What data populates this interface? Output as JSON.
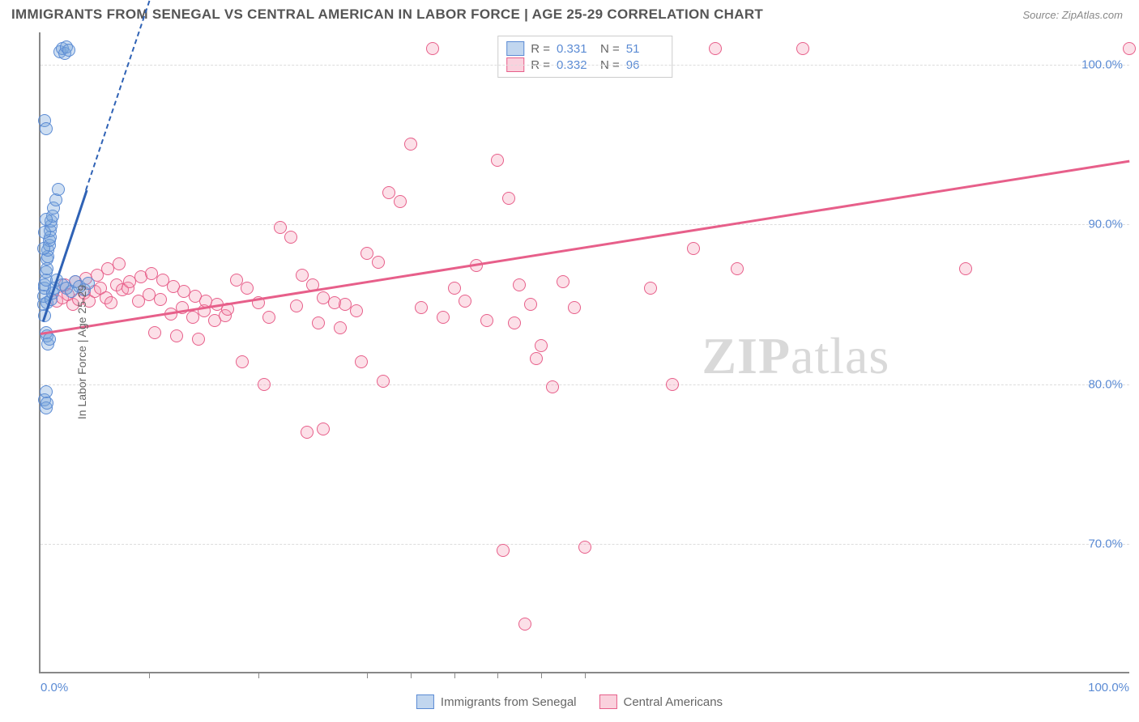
{
  "header": {
    "title": "IMMIGRANTS FROM SENEGAL VS CENTRAL AMERICAN IN LABOR FORCE | AGE 25-29 CORRELATION CHART",
    "source_prefix": "Source: ",
    "source_name": "ZipAtlas.com"
  },
  "chart": {
    "type": "scatter",
    "y_label": "In Labor Force | Age 25-29",
    "x_range": [
      0,
      100
    ],
    "y_range": [
      62,
      102
    ],
    "y_ticks": [
      70,
      80,
      90,
      100
    ],
    "y_tick_labels": [
      "70.0%",
      "80.0%",
      "90.0%",
      "100.0%"
    ],
    "x_major_ticks": [
      0,
      100
    ],
    "x_major_labels": [
      "0.0%",
      "100.0%"
    ],
    "x_minor_ticks": [
      10,
      20,
      30,
      34,
      38,
      42,
      46,
      50
    ],
    "background_color": "#ffffff",
    "grid_color": "#dddddd",
    "axis_color": "#888888",
    "marker_radius": 8,
    "marker_border_width": 1.5,
    "watermark": "ZIPatlas",
    "series": {
      "senegal": {
        "label": "Immigrants from Senegal",
        "fill": "rgba(118,164,219,0.35)",
        "stroke": "#5b8bd4",
        "swatch_fill": "rgba(118,164,219,0.45)",
        "swatch_stroke": "#5b8bd4",
        "r_label": "R  =",
        "r_value": "0.331",
        "n_label": "N  =",
        "n_value": "51",
        "trend": {
          "x1": 0.2,
          "y1": 84.0,
          "x2": 4.2,
          "y2": 92.2,
          "dash_x2": 11.0,
          "dash_y2": 106.0,
          "color": "#2f62b5"
        },
        "points": [
          [
            0.3,
            85
          ],
          [
            0.3,
            85.5
          ],
          [
            0.4,
            86
          ],
          [
            0.4,
            86.2
          ],
          [
            0.5,
            86.5
          ],
          [
            0.5,
            87
          ],
          [
            0.6,
            87.2
          ],
          [
            0.6,
            87.8
          ],
          [
            0.7,
            88
          ],
          [
            0.7,
            88.4
          ],
          [
            0.8,
            88.7
          ],
          [
            0.8,
            89
          ],
          [
            0.9,
            89.2
          ],
          [
            0.9,
            89.6
          ],
          [
            1.0,
            89.9
          ],
          [
            1.0,
            90.2
          ],
          [
            1.1,
            90.5
          ],
          [
            1.2,
            91
          ],
          [
            1.4,
            91.5
          ],
          [
            1.6,
            92.2
          ],
          [
            0.5,
            83.2
          ],
          [
            0.6,
            83
          ],
          [
            0.7,
            82.5
          ],
          [
            0.8,
            82.8
          ],
          [
            0.4,
            84.3
          ],
          [
            0.6,
            85.1
          ],
          [
            0.3,
            88.5
          ],
          [
            0.4,
            89.5
          ],
          [
            0.5,
            90.3
          ],
          [
            1.8,
            100.8
          ],
          [
            2.0,
            101
          ],
          [
            2.2,
            100.7
          ],
          [
            2.4,
            101.1
          ],
          [
            2.6,
            100.9
          ],
          [
            0.4,
            96.5
          ],
          [
            0.5,
            96.0
          ],
          [
            0.4,
            79.0
          ],
          [
            0.5,
            79.5
          ],
          [
            0.5,
            78.5
          ],
          [
            0.6,
            78.8
          ],
          [
            1.0,
            85.3
          ],
          [
            1.1,
            85.7
          ],
          [
            1.3,
            86.0
          ],
          [
            1.5,
            86.5
          ],
          [
            2.0,
            86.2
          ],
          [
            2.4,
            86.0
          ],
          [
            2.8,
            85.8
          ],
          [
            3.2,
            86.4
          ],
          [
            3.6,
            86.1
          ],
          [
            4.0,
            85.9
          ],
          [
            4.4,
            86.3
          ]
        ]
      },
      "central": {
        "label": "Central Americans",
        "fill": "rgba(244,153,179,0.30)",
        "stroke": "#e75f8a",
        "swatch_fill": "rgba(244,153,179,0.45)",
        "swatch_stroke": "#e75f8a",
        "r_label": "R  =",
        "r_value": "0.332",
        "n_label": "N  =",
        "n_value": "96",
        "trend": {
          "x1": 0,
          "y1": 83.2,
          "x2": 100,
          "y2": 94.0,
          "color": "#e75f8a"
        },
        "points": [
          [
            1.5,
            85.2
          ],
          [
            2.0,
            85.4
          ],
          [
            2.5,
            85.6
          ],
          [
            3.0,
            85.0
          ],
          [
            3.5,
            85.3
          ],
          [
            4.0,
            85.7
          ],
          [
            4.5,
            85.2
          ],
          [
            5.0,
            85.8
          ],
          [
            5.5,
            86.0
          ],
          [
            6.0,
            85.4
          ],
          [
            6.5,
            85.1
          ],
          [
            7.0,
            86.2
          ],
          [
            7.5,
            85.9
          ],
          [
            8.0,
            86.0
          ],
          [
            9.0,
            85.2
          ],
          [
            10.0,
            85.6
          ],
          [
            11.0,
            85.3
          ],
          [
            12.0,
            84.4
          ],
          [
            13.0,
            84.8
          ],
          [
            14.0,
            84.2
          ],
          [
            15.0,
            84.6
          ],
          [
            16.0,
            84.0
          ],
          [
            17.0,
            84.3
          ],
          [
            18.0,
            86.5
          ],
          [
            19.0,
            86.0
          ],
          [
            20.0,
            85.1
          ],
          [
            21.0,
            84.2
          ],
          [
            10.5,
            83.2
          ],
          [
            12.5,
            83.0
          ],
          [
            14.5,
            82.8
          ],
          [
            22.0,
            89.8
          ],
          [
            23.0,
            89.2
          ],
          [
            24.0,
            86.8
          ],
          [
            25.0,
            86.2
          ],
          [
            26.0,
            85.4
          ],
          [
            27.0,
            85.1
          ],
          [
            28.0,
            85.0
          ],
          [
            29.0,
            84.6
          ],
          [
            30.0,
            88.2
          ],
          [
            31.0,
            87.6
          ],
          [
            32.0,
            92.0
          ],
          [
            33.0,
            91.4
          ],
          [
            34.0,
            95.0
          ],
          [
            36.0,
            101.0
          ],
          [
            38.0,
            86.0
          ],
          [
            39.0,
            85.2
          ],
          [
            40.0,
            87.4
          ],
          [
            42.0,
            94.0
          ],
          [
            43.0,
            91.6
          ],
          [
            44.0,
            86.2
          ],
          [
            45.0,
            85.0
          ],
          [
            46.0,
            82.4
          ],
          [
            47.0,
            79.8
          ],
          [
            48.0,
            86.4
          ],
          [
            49.0,
            84.8
          ],
          [
            50.0,
            69.8
          ],
          [
            44.5,
            65.0
          ],
          [
            31.5,
            80.2
          ],
          [
            29.5,
            81.4
          ],
          [
            18.5,
            81.4
          ],
          [
            20.5,
            80.0
          ],
          [
            42.5,
            69.6
          ],
          [
            56.0,
            86.0
          ],
          [
            58.0,
            80.0
          ],
          [
            60.0,
            88.5
          ],
          [
            62.0,
            101.0
          ],
          [
            64.0,
            87.2
          ],
          [
            70.0,
            101.0
          ],
          [
            85.0,
            87.2
          ],
          [
            100.0,
            101.0
          ],
          [
            5.2,
            86.8
          ],
          [
            6.2,
            87.2
          ],
          [
            7.2,
            87.5
          ],
          [
            8.2,
            86.4
          ],
          [
            9.2,
            86.7
          ],
          [
            10.2,
            86.9
          ],
          [
            11.2,
            86.5
          ],
          [
            12.2,
            86.1
          ],
          [
            13.2,
            85.8
          ],
          [
            14.2,
            85.5
          ],
          [
            15.2,
            85.2
          ],
          [
            16.2,
            85.0
          ],
          [
            17.2,
            84.7
          ],
          [
            24.5,
            77.0
          ],
          [
            26.0,
            77.2
          ],
          [
            35.0,
            84.8
          ],
          [
            37.0,
            84.2
          ],
          [
            41.0,
            84.0
          ],
          [
            43.5,
            83.8
          ],
          [
            45.5,
            81.6
          ],
          [
            23.5,
            84.9
          ],
          [
            25.5,
            83.8
          ],
          [
            27.5,
            83.5
          ],
          [
            2.2,
            86.2
          ],
          [
            3.2,
            86.4
          ],
          [
            4.2,
            86.6
          ]
        ]
      }
    }
  },
  "legend_bottom": {
    "item1": "Immigrants from Senegal",
    "item2": "Central Americans"
  }
}
